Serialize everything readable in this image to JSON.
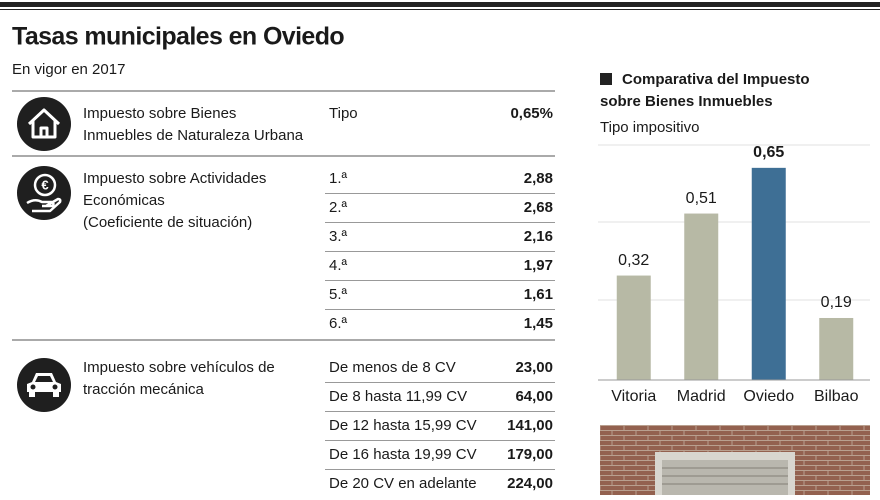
{
  "header": {
    "title": "Tasas municipales en Oviedo",
    "subtitle": "En vigor en 2017"
  },
  "table": {
    "sections": [
      {
        "label": [
          "Impuesto sobre Bienes",
          "Inmuebles de Naturaleza Urbana"
        ],
        "rows": [
          [
            "Tipo",
            "0,65%"
          ]
        ]
      },
      {
        "label": [
          "Impuesto sobre Actividades",
          "Económicas",
          "(Coeficiente de situación)"
        ],
        "rows": [
          [
            "1.ª",
            "2,88"
          ],
          [
            "2.ª",
            "2,68"
          ],
          [
            "3.ª",
            "2,16"
          ],
          [
            "4.ª",
            "1,97"
          ],
          [
            "5.ª",
            "1,61"
          ],
          [
            "6.ª",
            "1,45"
          ]
        ]
      },
      {
        "label": [
          "Impuesto sobre vehículos de",
          "tracción mecánica"
        ],
        "rows": [
          [
            "De menos de 8 CV",
            "23,00"
          ],
          [
            "De 8 hasta 11,99 CV",
            "64,00"
          ],
          [
            "De 12 hasta 15,99 CV",
            "141,00"
          ],
          [
            "De 16 hasta 19,99 CV",
            "179,00"
          ],
          [
            "De 20 CV en adelante",
            "224,00"
          ]
        ]
      }
    ]
  },
  "chart_data": {
    "type": "bar",
    "title": [
      "Comparativa del Impuesto",
      "sobre Bienes Inmuebles"
    ],
    "subtitle": "Tipo impositivo",
    "categories": [
      "Vitoria",
      "Madrid",
      "Oviedo",
      "Bilbao"
    ],
    "values": [
      0.32,
      0.51,
      0.65,
      0.19
    ],
    "value_labels": [
      "0,32",
      "0,51",
      "0,65",
      "0,19"
    ],
    "colors": [
      "#b7b9a5",
      "#b7b9a5",
      "#3e6f95",
      "#b7b9a5"
    ],
    "highlight": "Oviedo",
    "ylim": [
      0,
      0.72
    ]
  }
}
